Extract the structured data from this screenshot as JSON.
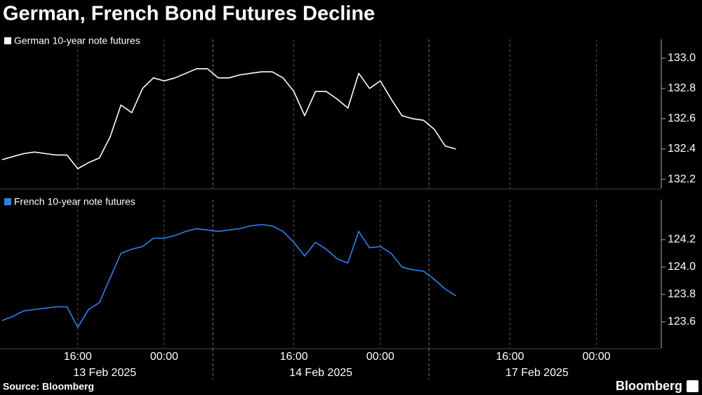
{
  "chart_data": {
    "type": "line",
    "title": "German, French Bond Futures Decline",
    "x": [
      "13 Feb 2025 09:00",
      "13 Feb 2025 10:00",
      "13 Feb 2025 11:00",
      "13 Feb 2025 12:00",
      "13 Feb 2025 13:00",
      "13 Feb 2025 14:00",
      "13 Feb 2025 15:00",
      "13 Feb 2025 16:00",
      "13 Feb 2025 17:00",
      "13 Feb 2025 18:00",
      "13 Feb 2025 19:00",
      "13 Feb 2025 20:00",
      "13 Feb 2025 21:00",
      "13 Feb 2025 22:00",
      "13 Feb 2025 23:00",
      "13 Feb 2025 00:00",
      "13 Feb 2025 01:00",
      "13 Feb 2025 02:00",
      "13 Feb 2025 03:00",
      "13 Feb 2025 04:00",
      "14 Feb 2025 09:00",
      "14 Feb 2025 10:00",
      "14 Feb 2025 11:00",
      "14 Feb 2025 12:00",
      "14 Feb 2025 13:00",
      "14 Feb 2025 14:00",
      "14 Feb 2025 15:00",
      "14 Feb 2025 16:00",
      "14 Feb 2025 17:00",
      "14 Feb 2025 18:00",
      "14 Feb 2025 19:00",
      "14 Feb 2025 20:00",
      "14 Feb 2025 21:00",
      "14 Feb 2025 22:00",
      "14 Feb 2025 23:00",
      "14 Feb 2025 00:00",
      "14 Feb 2025 01:00",
      "14 Feb 2025 02:00",
      "14 Feb 2025 03:00",
      "14 Feb 2025 04:00",
      "17 Feb 2025 09:00",
      "17 Feb 2025 10:00",
      "17 Feb 2025 11:00",
      "17 Feb 2025 12:00",
      "17 Feb 2025 13:00",
      "17 Feb 2025 14:00",
      "17 Feb 2025 15:00",
      "17 Feb 2025 16:00",
      "17 Feb 2025 17:00",
      "17 Feb 2025 18:00",
      "17 Feb 2025 19:00",
      "17 Feb 2025 20:00",
      "17 Feb 2025 21:00",
      "17 Feb 2025 22:00",
      "17 Feb 2025 23:00",
      "17 Feb 2025 00:00",
      "17 Feb 2025 01:00",
      "17 Feb 2025 02:00",
      "17 Feb 2025 03:00",
      "17 Feb 2025 04:00"
    ],
    "xticks": [
      {
        "value": "13 Feb 2025 16:00",
        "label": "16:00"
      },
      {
        "value": "13 Feb 2025 00:00",
        "label": "00:00"
      },
      {
        "value": "14 Feb 2025 16:00",
        "label": "16:00"
      },
      {
        "value": "14 Feb 2025 00:00",
        "label": "00:00"
      },
      {
        "value": "17 Feb 2025 16:00",
        "label": "16:00"
      },
      {
        "value": "17 Feb 2025 00:00",
        "label": "00:00"
      }
    ],
    "xgroups": [
      "13 Feb 2025",
      "14 Feb 2025",
      "17 Feb 2025"
    ],
    "panels": [
      {
        "series": [
          {
            "name": "German 10-year note futures",
            "color": "#ffffff",
            "values": [
              132.33,
              132.35,
              132.37,
              132.38,
              132.37,
              132.36,
              132.36,
              132.27,
              132.31,
              132.34,
              132.48,
              132.69,
              132.64,
              132.8,
              132.87,
              132.85,
              132.87,
              132.9,
              132.93,
              132.93,
              132.87,
              132.87,
              132.89,
              132.9,
              132.91,
              132.91,
              132.87,
              132.78,
              132.62,
              132.78,
              132.78,
              132.73,
              132.67,
              132.9,
              132.8,
              132.85,
              132.73,
              132.62,
              132.6,
              132.59,
              132.53,
              132.42,
              132.4,
              null,
              null,
              null,
              null,
              null,
              null,
              null,
              null,
              null,
              null,
              null,
              null,
              null,
              null,
              null,
              null,
              null
            ]
          }
        ],
        "ylim": [
          132.14,
          133.05
        ],
        "yticks": [
          132.2,
          132.4,
          132.6,
          132.8,
          {
            "value": 133,
            "label": "133.0"
          }
        ]
      },
      {
        "series": [
          {
            "name": "French 10-year note futures",
            "color": "#2f80ed",
            "values": [
              123.61,
              123.64,
              123.68,
              123.69,
              123.7,
              123.71,
              123.71,
              123.56,
              123.69,
              123.74,
              123.92,
              124.1,
              124.13,
              124.15,
              124.21,
              124.21,
              124.23,
              124.26,
              124.28,
              124.27,
              124.26,
              124.27,
              124.28,
              124.3,
              124.31,
              124.3,
              124.26,
              124.18,
              124.08,
              124.18,
              124.13,
              124.06,
              124.03,
              124.26,
              124.14,
              124.15,
              124.1,
              124,
              123.98,
              123.97,
              123.91,
              123.84,
              123.79,
              null,
              null,
              null,
              null,
              null,
              null,
              null,
              null,
              null,
              null,
              null,
              null,
              null,
              null,
              null,
              null,
              null
            ]
          }
        ],
        "ylim": [
          123.41,
          124.41
        ],
        "yticks": [
          123.6,
          123.8,
          {
            "value": 124,
            "label": "124.0"
          },
          124.2
        ]
      }
    ],
    "source": "Source: Bloomberg",
    "brand": "Bloomberg"
  }
}
